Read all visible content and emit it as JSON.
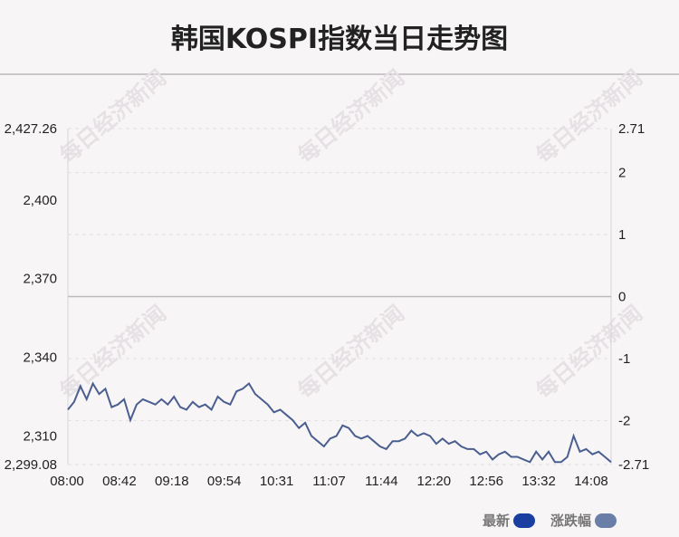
{
  "title": "韩国KOSPI指数当日走势图",
  "watermark": "每日经济新闻",
  "legend": {
    "latest_label": "最新",
    "latest_color": "#1a3fa0",
    "change_label": "涨跌幅",
    "change_color": "#6a7fa8"
  },
  "chart_data": {
    "type": "line",
    "x_ticks": [
      "08:00",
      "08:42",
      "09:18",
      "09:54",
      "10:31",
      "11:07",
      "11:44",
      "12:20",
      "12:56",
      "13:32",
      "14:08"
    ],
    "y_left_ticks": [
      "2,427.26",
      "2,400",
      "2,370",
      "2,340",
      "2,310",
      "2,299.08"
    ],
    "y_left_tick_values": [
      2427.26,
      2400,
      2370,
      2340,
      2310,
      2299.08
    ],
    "y_right_ticks": [
      "2.71",
      "2",
      "1",
      "0",
      "-1",
      "-2",
      "-2.71"
    ],
    "y_right_tick_values": [
      2.71,
      2,
      1,
      0,
      -1,
      -2,
      -2.71
    ],
    "ylim_left": [
      2299.08,
      2427.26
    ],
    "ylim_right": [
      -2.71,
      2.71
    ],
    "baseline": 2363.17,
    "line_color": "#4a5f8f",
    "series": [
      {
        "values": [
          2320,
          2323,
          2329,
          2324,
          2330,
          2326,
          2328,
          2321,
          2322,
          2324,
          2316,
          2322,
          2324,
          2323,
          2322,
          2324,
          2322,
          2325,
          2321,
          2320,
          2323,
          2321,
          2322,
          2320,
          2325,
          2323,
          2322,
          2327,
          2328,
          2330,
          2326,
          2324,
          2322,
          2319,
          2320,
          2318,
          2316,
          2313,
          2315,
          2310,
          2308,
          2306,
          2309,
          2310,
          2314,
          2313,
          2310,
          2309,
          2310,
          2308,
          2306,
          2305,
          2308,
          2308,
          2309,
          2312,
          2310,
          2311,
          2310,
          2307,
          2309,
          2307,
          2308,
          2306,
          2305,
          2305,
          2303,
          2304,
          2301,
          2303,
          2304,
          2302,
          2302,
          2301,
          2300,
          2304,
          2301,
          2304,
          2300,
          2300,
          2302,
          2310,
          2304,
          2305,
          2303,
          2304,
          2302,
          2300
        ]
      }
    ]
  }
}
